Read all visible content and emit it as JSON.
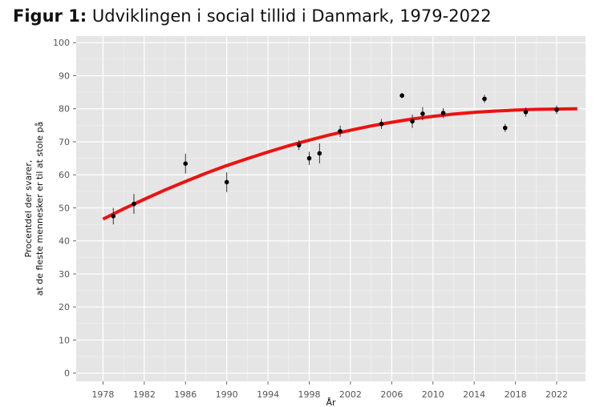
{
  "figure": {
    "lead": "Figur 1:",
    "title": "Udviklingen i social tillid i Danmark, 1979-2022"
  },
  "chart_data": {
    "type": "scatter",
    "xlabel": "År",
    "ylabel_line1": "Procentdel der svarer,",
    "ylabel_line2": "at de fleste mennesker er til at stole på",
    "xlim": [
      1975.4,
      2024.8
    ],
    "ylim": [
      -2.5,
      102
    ],
    "x_ticks": [
      1978,
      1982,
      1986,
      1990,
      1994,
      1998,
      2002,
      2006,
      2010,
      2014,
      2018,
      2022
    ],
    "y_ticks": [
      0,
      10,
      20,
      30,
      40,
      50,
      60,
      70,
      80,
      90,
      100
    ],
    "grid": true,
    "points": [
      {
        "x": 1979,
        "y": 47.5,
        "lo": 45.0,
        "hi": 50.0
      },
      {
        "x": 1981,
        "y": 51.2,
        "lo": 48.2,
        "hi": 54.2
      },
      {
        "x": 1986,
        "y": 63.4,
        "lo": 60.4,
        "hi": 66.4
      },
      {
        "x": 1990,
        "y": 57.8,
        "lo": 54.8,
        "hi": 60.8
      },
      {
        "x": 1997,
        "y": 69.0,
        "lo": 67.5,
        "hi": 70.5
      },
      {
        "x": 1998,
        "y": 65.0,
        "lo": 63.0,
        "hi": 67.0
      },
      {
        "x": 1999,
        "y": 66.5,
        "lo": 63.5,
        "hi": 69.5
      },
      {
        "x": 2001,
        "y": 73.2,
        "lo": 71.5,
        "hi": 74.9
      },
      {
        "x": 2005,
        "y": 75.4,
        "lo": 73.9,
        "hi": 76.9
      },
      {
        "x": 2007,
        "y": 84.0,
        "lo": 83.2,
        "hi": 84.8
      },
      {
        "x": 2008,
        "y": 76.2,
        "lo": 74.2,
        "hi": 78.2
      },
      {
        "x": 2009,
        "y": 78.5,
        "lo": 76.5,
        "hi": 80.5
      },
      {
        "x": 2011,
        "y": 78.7,
        "lo": 77.2,
        "hi": 80.2
      },
      {
        "x": 2015,
        "y": 83.0,
        "lo": 81.8,
        "hi": 84.2
      },
      {
        "x": 2017,
        "y": 74.2,
        "lo": 73.0,
        "hi": 75.4
      },
      {
        "x": 2019,
        "y": 79.0,
        "lo": 77.6,
        "hi": 80.4
      },
      {
        "x": 2022,
        "y": 79.7,
        "lo": 78.4,
        "hi": 81.0
      }
    ],
    "trend": {
      "color": "#ee1111",
      "x": [
        1978,
        1980,
        1982,
        1984,
        1986,
        1988,
        1990,
        1992,
        1994,
        1996,
        1998,
        2000,
        2002,
        2004,
        2006,
        2008,
        2010,
        2012,
        2014,
        2016,
        2018,
        2020,
        2022,
        2024
      ],
      "y": [
        46.6,
        49.7,
        52.6,
        55.4,
        58.0,
        60.5,
        62.8,
        64.9,
        66.9,
        68.8,
        70.5,
        72.1,
        73.5,
        74.8,
        75.9,
        76.9,
        77.7,
        78.4,
        78.9,
        79.3,
        79.6,
        79.8,
        79.9,
        80.0
      ]
    },
    "colors": {
      "panel": "#e5e5e5",
      "grid_major": "#ffffff",
      "grid_minor": "#f2f2f2",
      "points": "#000000"
    }
  }
}
